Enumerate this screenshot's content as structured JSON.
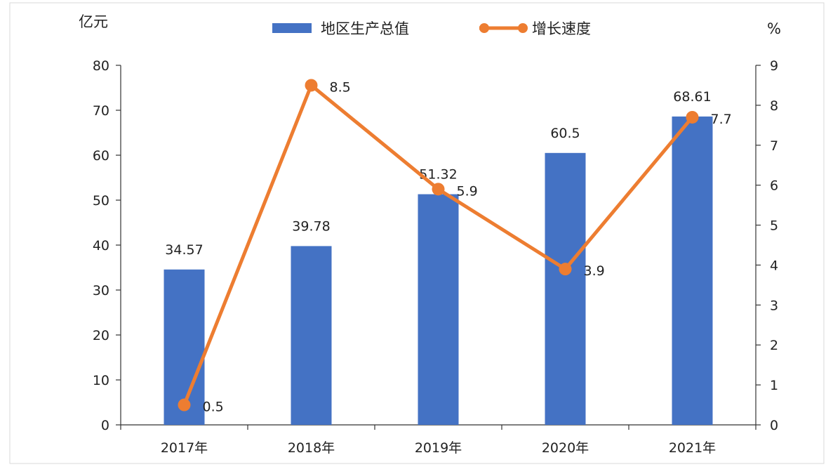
{
  "chart_data": {
    "type": "bar",
    "categories": [
      "2017年",
      "2018年",
      "2019年",
      "2020年",
      "2021年"
    ],
    "series": [
      {
        "name": "地区生产总值",
        "type": "bar",
        "axis": "left",
        "color": "#4472C4",
        "values": [
          34.57,
          39.78,
          51.32,
          60.5,
          68.61
        ],
        "labels": [
          "34.57",
          "39.78",
          "51.32",
          "60.5",
          "68.61"
        ]
      },
      {
        "name": "增长速度",
        "type": "line",
        "axis": "right",
        "color": "#ED7D31",
        "values": [
          0.5,
          8.5,
          5.9,
          3.9,
          7.7
        ],
        "labels": [
          "0.5",
          "8.5",
          "5.9",
          "3.9",
          "7.7"
        ]
      }
    ],
    "y_left": {
      "unit": "亿元",
      "ylim": [
        0,
        80
      ],
      "ticks": [
        "0",
        "10",
        "20",
        "30",
        "40",
        "50",
        "60",
        "70",
        "80"
      ]
    },
    "y_right": {
      "unit": "%",
      "ylim": [
        0,
        9
      ],
      "ticks": [
        "0",
        "1",
        "2",
        "3",
        "4",
        "5",
        "6",
        "7",
        "8",
        "9"
      ]
    },
    "legend": "top-center",
    "grid": false
  }
}
